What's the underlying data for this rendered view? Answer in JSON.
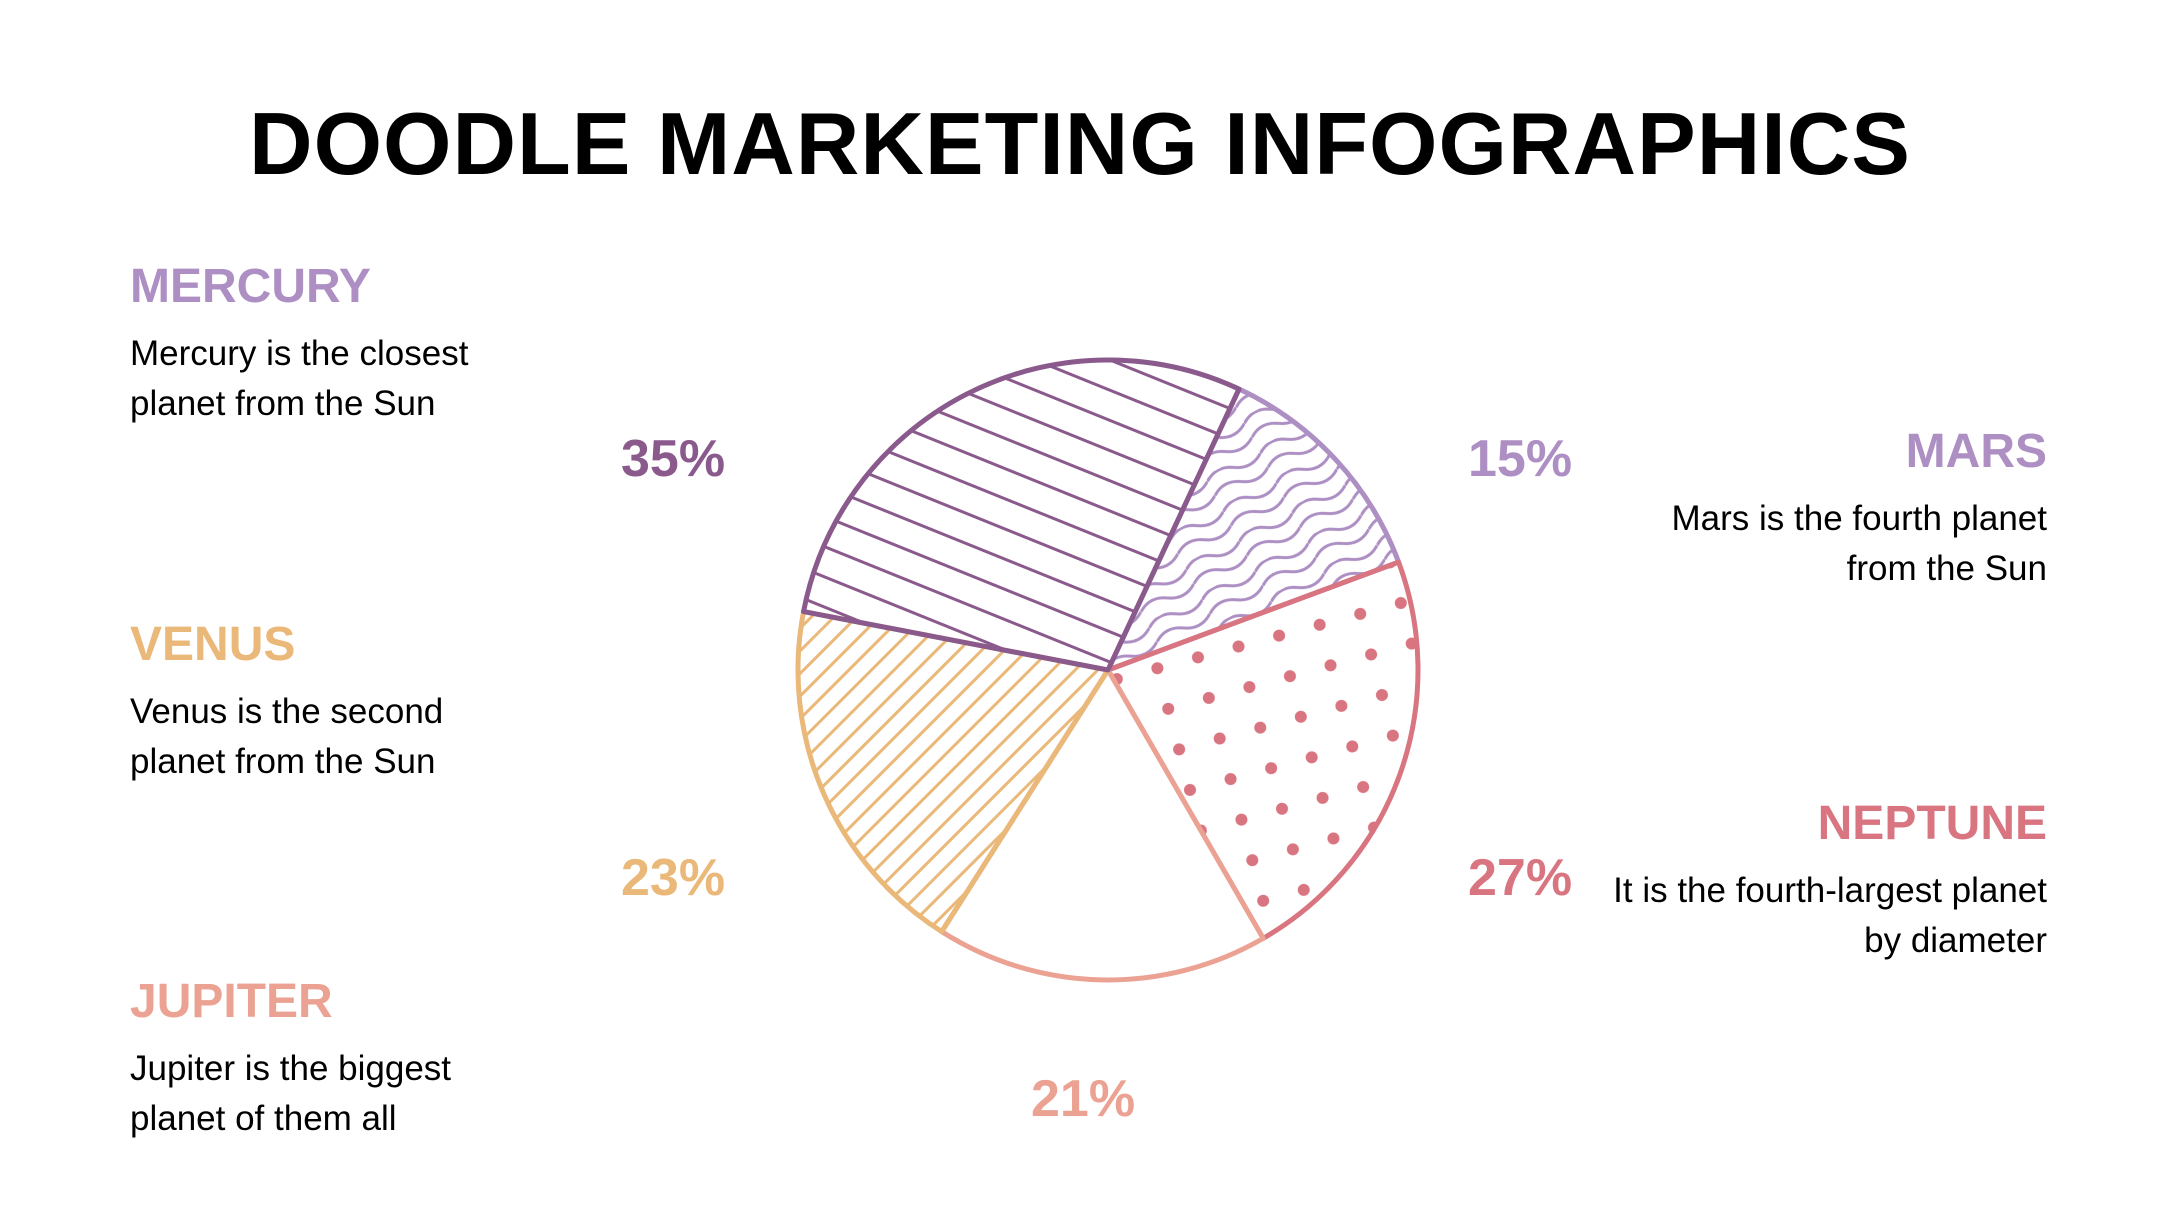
{
  "title": "DOODLE MARKETING INFOGRAPHICS",
  "colors": {
    "mercury": "#8a5a8c",
    "mars": "#ad8fc3",
    "venus": "#eab878",
    "jupiter": "#eba292",
    "neptune": "#d97580",
    "text": "#000000"
  },
  "legend": {
    "mercury": {
      "name": "MERCURY",
      "desc": "Mercury is the closest\nplanet from the Sun"
    },
    "venus": {
      "name": "VENUS",
      "desc": "Venus is the second\nplanet from the Sun"
    },
    "jupiter": {
      "name": "JUPITER",
      "desc": "Jupiter is the biggest\nplanet of them all"
    },
    "mars": {
      "name": "MARS",
      "desc": "Mars is the fourth planet\nfrom the Sun"
    },
    "neptune": {
      "name": "NEPTUNE",
      "desc": "It is the fourth-largest planet\nby diameter"
    }
  },
  "chart_data": {
    "type": "pie",
    "title": "",
    "slices": [
      {
        "label": "MERCURY",
        "value": 35,
        "display": "35%",
        "color": "#8a5a8c",
        "pattern": "diagonal-lines"
      },
      {
        "label": "MARS",
        "value": 15,
        "display": "15%",
        "color": "#ad8fc3",
        "pattern": "scribble"
      },
      {
        "label": "NEPTUNE",
        "value": 27,
        "display": "27%",
        "color": "#d97580",
        "pattern": "dots"
      },
      {
        "label": "JUPITER",
        "value": 21,
        "display": "21%",
        "color": "#eba292",
        "pattern": "none"
      },
      {
        "label": "VENUS",
        "value": 23,
        "display": "23%",
        "color": "#eab878",
        "pattern": "hatch"
      }
    ]
  }
}
